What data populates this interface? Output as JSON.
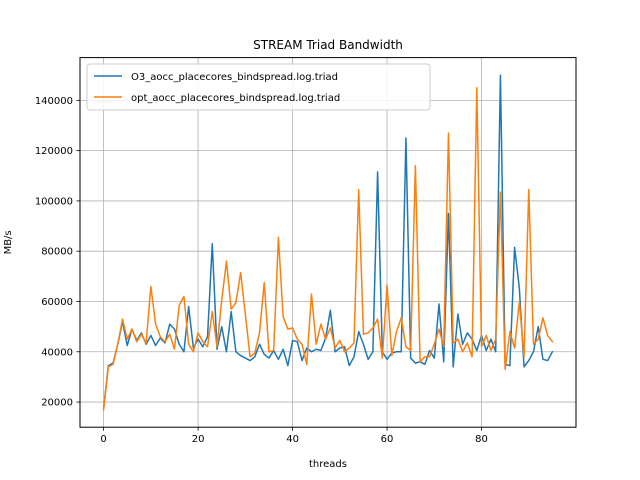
{
  "chart_data": {
    "type": "line",
    "title": "STREAM Triad Bandwidth",
    "xlabel": "threads",
    "ylabel": "MB/s",
    "xlim": [
      -5,
      100
    ],
    "ylim": [
      10000,
      157000
    ],
    "xticks": [
      0,
      20,
      40,
      60,
      80
    ],
    "yticks": [
      20000,
      40000,
      60000,
      80000,
      100000,
      120000,
      140000
    ],
    "grid": true,
    "legend_position": "top-left",
    "series": [
      {
        "name": "O3_aocc_placecores_bindspread.log.triad",
        "color": "#1f77b4",
        "x": [
          0,
          1,
          2,
          3,
          4,
          5,
          6,
          7,
          8,
          9,
          10,
          11,
          12,
          13,
          14,
          15,
          16,
          17,
          18,
          19,
          20,
          21,
          22,
          23,
          24,
          25,
          26,
          27,
          28,
          29,
          30,
          31,
          32,
          33,
          34,
          35,
          36,
          37,
          38,
          39,
          40,
          41,
          42,
          43,
          44,
          45,
          46,
          47,
          48,
          49,
          50,
          51,
          52,
          53,
          54,
          55,
          56,
          57,
          58,
          59,
          60,
          61,
          62,
          63,
          64,
          65,
          66,
          67,
          68,
          69,
          70,
          71,
          72,
          73,
          74,
          75,
          76,
          77,
          78,
          79,
          80,
          81,
          82,
          83,
          84,
          85,
          86,
          87,
          88,
          89,
          90,
          91,
          92,
          93,
          94,
          95
        ],
        "y": [
          17500,
          34500,
          35500,
          43000,
          52000,
          42500,
          49000,
          44500,
          47500,
          43000,
          46500,
          42500,
          45500,
          43500,
          51000,
          49000,
          43000,
          40000,
          58000,
          41500,
          45000,
          42000,
          46000,
          83000,
          41000,
          50000,
          40000,
          56000,
          40000,
          38500,
          37500,
          36500,
          38000,
          43000,
          39000,
          37500,
          40500,
          37000,
          41000,
          34500,
          44500,
          44000,
          36500,
          41500,
          40000,
          41000,
          40500,
          45500,
          56500,
          40000,
          41500,
          42000,
          34500,
          38000,
          48000,
          43000,
          37000,
          40000,
          111500,
          40000,
          37000,
          39500,
          40000,
          40000,
          125000,
          37500,
          35500,
          36000,
          35000,
          40500,
          37500,
          59000,
          36000,
          95000,
          34000,
          55000,
          43000,
          47500,
          45000,
          40500,
          46500,
          40500,
          45000,
          40000,
          150000,
          35000,
          34500,
          81500,
          65500,
          34000,
          36500,
          40000,
          50000,
          37000,
          36500,
          40000
        ]
      },
      {
        "name": "opt_aocc_placecores_bindspread.log.triad",
        "color": "#ff7f0e",
        "x": [
          0,
          1,
          2,
          3,
          4,
          5,
          6,
          7,
          8,
          9,
          10,
          11,
          12,
          13,
          14,
          15,
          16,
          17,
          18,
          19,
          20,
          21,
          22,
          23,
          24,
          25,
          26,
          27,
          28,
          29,
          30,
          31,
          32,
          33,
          34,
          35,
          36,
          37,
          38,
          39,
          40,
          41,
          42,
          43,
          44,
          45,
          46,
          47,
          48,
          49,
          50,
          51,
          52,
          53,
          54,
          55,
          56,
          57,
          58,
          59,
          60,
          61,
          62,
          63,
          64,
          65,
          66,
          67,
          68,
          69,
          70,
          71,
          72,
          73,
          74,
          75,
          76,
          77,
          78,
          79,
          80,
          81,
          82,
          83,
          84,
          85,
          86,
          87,
          88,
          89,
          90,
          91,
          92,
          93,
          94,
          95
        ],
        "y": [
          17000,
          34000,
          35000,
          43000,
          53000,
          45000,
          49000,
          44000,
          47000,
          43500,
          66000,
          51000,
          46000,
          44000,
          47000,
          41000,
          58500,
          62000,
          43000,
          40000,
          47500,
          44000,
          42000,
          56000,
          42000,
          60500,
          76000,
          57000,
          59500,
          71500,
          55000,
          38000,
          39500,
          47500,
          67500,
          40000,
          40500,
          85500,
          54000,
          49000,
          49500,
          45000,
          43000,
          35000,
          63000,
          43000,
          51000,
          45000,
          49500,
          41500,
          44500,
          40000,
          41500,
          43500,
          104500,
          47000,
          47500,
          49500,
          53000,
          37500,
          66500,
          38500,
          48000,
          53500,
          42000,
          40500,
          114000,
          36000,
          38000,
          38000,
          43000,
          49000,
          42000,
          127000,
          43500,
          45000,
          40000,
          43500,
          38000,
          145000,
          42000,
          46500,
          40500,
          45000,
          103500,
          33000,
          48000,
          41500,
          60000,
          38000,
          104500,
          43000,
          45000,
          53500,
          46500,
          44000
        ]
      }
    ]
  }
}
